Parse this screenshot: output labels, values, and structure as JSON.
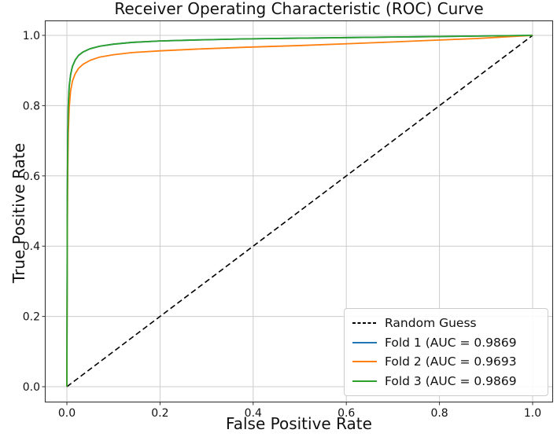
{
  "figure": {
    "background": "#ffffff",
    "text_color": "#111111",
    "grid_color": "#cccccc",
    "spine_color": "#333333"
  },
  "chart_data": {
    "type": "line",
    "title": "Receiver Operating Characteristic (ROC) Curve",
    "xlabel": "False Positive Rate",
    "ylabel": "True Positive Rate",
    "xticks": [
      "0.0",
      "0.2",
      "0.4",
      "0.6",
      "0.8",
      "1.0"
    ],
    "yticks": [
      "0.0",
      "0.2",
      "0.4",
      "0.6",
      "0.8",
      "1.0"
    ],
    "xlim": [
      -0.047,
      1.047
    ],
    "ylim": [
      -0.045,
      1.043
    ],
    "grid": true,
    "legend_position": "lower right",
    "series": [
      {
        "name": "Random Guess",
        "color": "#000000",
        "style": "dashed",
        "x": [
          0,
          1
        ],
        "y": [
          0,
          1
        ]
      },
      {
        "name": "Fold 1 (AUC = 0.9869",
        "auc": "0.9869",
        "color": "#1f77b4",
        "style": "solid",
        "x": [
          0,
          0.001,
          0.002,
          0.003,
          0.005,
          0.008,
          0.012,
          0.018,
          0.025,
          0.035,
          0.05,
          0.07,
          0.1,
          0.14,
          0.2,
          0.28,
          0.38,
          0.5,
          0.62,
          0.75,
          0.88,
          1.0
        ],
        "y": [
          0,
          0.55,
          0.72,
          0.8,
          0.855,
          0.888,
          0.912,
          0.93,
          0.943,
          0.953,
          0.962,
          0.969,
          0.975,
          0.98,
          0.984,
          0.987,
          0.99,
          0.992,
          0.994,
          0.996,
          0.998,
          1.0
        ]
      },
      {
        "name": "Fold 2 (AUC = 0.9693",
        "auc": "0.9693",
        "color": "#ff7f0e",
        "style": "solid",
        "x": [
          0,
          0.001,
          0.002,
          0.003,
          0.005,
          0.008,
          0.012,
          0.018,
          0.025,
          0.035,
          0.05,
          0.07,
          0.1,
          0.14,
          0.2,
          0.28,
          0.38,
          0.5,
          0.62,
          0.75,
          0.88,
          1.0
        ],
        "y": [
          0,
          0.45,
          0.62,
          0.72,
          0.795,
          0.842,
          0.87,
          0.891,
          0.906,
          0.918,
          0.929,
          0.938,
          0.945,
          0.951,
          0.956,
          0.961,
          0.966,
          0.971,
          0.977,
          0.984,
          0.991,
          1.0
        ]
      },
      {
        "name": "Fold 3 (AUC = 0.9869",
        "auc": "0.9869",
        "color": "#2ca02c",
        "style": "solid",
        "x": [
          0,
          0.001,
          0.002,
          0.003,
          0.005,
          0.008,
          0.012,
          0.018,
          0.025,
          0.035,
          0.05,
          0.07,
          0.1,
          0.14,
          0.2,
          0.28,
          0.38,
          0.5,
          0.62,
          0.75,
          0.88,
          1.0
        ],
        "y": [
          0,
          0.55,
          0.72,
          0.8,
          0.855,
          0.888,
          0.912,
          0.93,
          0.943,
          0.953,
          0.962,
          0.969,
          0.975,
          0.98,
          0.984,
          0.987,
          0.99,
          0.992,
          0.994,
          0.996,
          0.998,
          1.0
        ]
      }
    ]
  }
}
